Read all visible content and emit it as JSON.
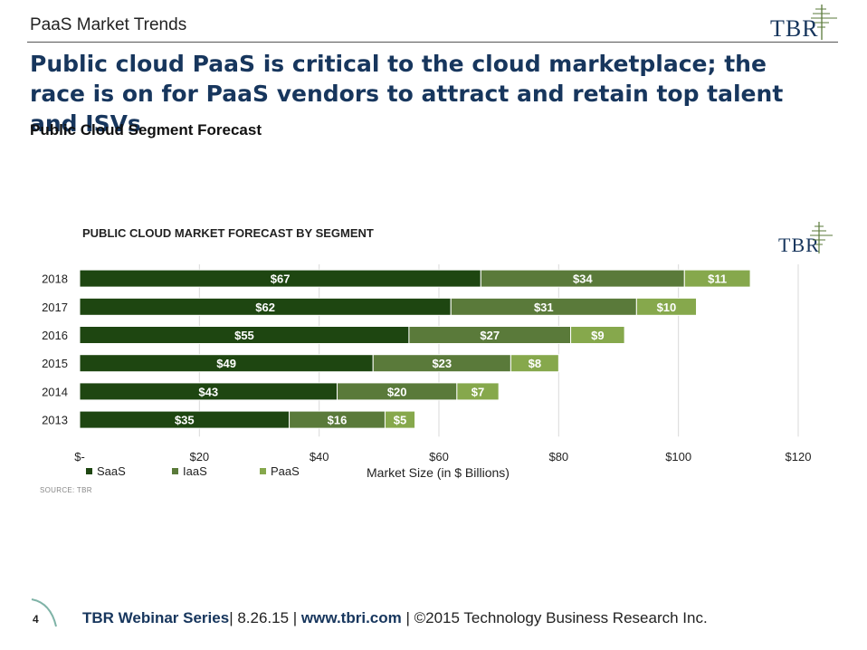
{
  "header": {
    "section_label": "PaaS Market Trends",
    "logo_text": "TBR"
  },
  "headline": "Public cloud PaaS is critical to the cloud marketplace; the race is on for PaaS vendors to attract and retain top talent and ISVs",
  "subheading": "Public Cloud Segment Forecast",
  "colors": {
    "saas": "#1e4611",
    "iaas": "#5a7a3a",
    "paas": "#86a84c",
    "headline": "#17365d",
    "logo_accent": "#5a7a3a"
  },
  "chart_data": {
    "type": "bar",
    "orientation": "horizontal",
    "stacked": true,
    "title": "PUBLIC CLOUD MARKET FORECAST BY SEGMENT",
    "categories": [
      "2018",
      "2017",
      "2016",
      "2015",
      "2014",
      "2013"
    ],
    "series": [
      {
        "name": "SaaS",
        "values": [
          67,
          62,
          55,
          49,
          43,
          35
        ],
        "labels": [
          "$67",
          "$62",
          "$55",
          "$49",
          "$43",
          "$35"
        ]
      },
      {
        "name": "IaaS",
        "values": [
          34,
          31,
          27,
          23,
          20,
          16
        ],
        "labels": [
          "$34",
          "$31",
          "$27",
          "$23",
          "$20",
          "$16"
        ]
      },
      {
        "name": "PaaS",
        "values": [
          11,
          10,
          9,
          8,
          7,
          5
        ],
        "labels": [
          "$11",
          "$10",
          "$9",
          "$8",
          "$7",
          "$5"
        ]
      }
    ],
    "xlabel": "Market Size (in $ Billions)",
    "xlim": [
      0,
      120
    ],
    "xticks": [
      0,
      20,
      40,
      60,
      80,
      100,
      120
    ],
    "xtick_labels": [
      "$-",
      "$20",
      "$40",
      "$60",
      "$80",
      "$100",
      "$120"
    ],
    "grid": true,
    "legend_position": "bottom-left",
    "legend": [
      "SaaS",
      "IaaS",
      "PaaS"
    ],
    "source": "SOURCE: TBR"
  },
  "footer": {
    "page_number": "4",
    "brand": "TBR Webinar Series",
    "sep1": "| 8.26.15 | ",
    "url": "www.tbri.com",
    "rest": " | ©2015 Technology Business Research Inc."
  }
}
